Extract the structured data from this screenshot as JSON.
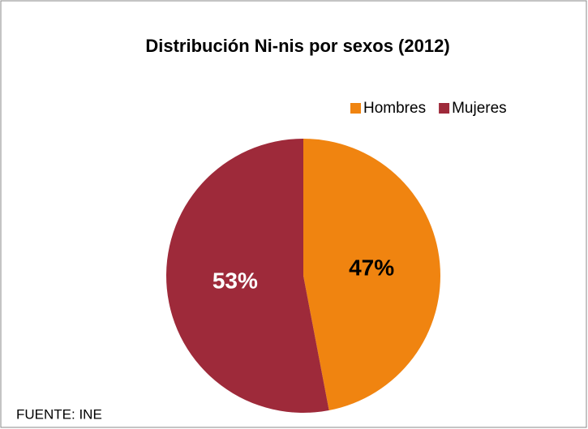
{
  "chart_data": {
    "type": "pie",
    "title": "Distribución Ni-nis por sexos (2012)",
    "categories": [
      "Hombres",
      "Mujeres"
    ],
    "values": [
      47,
      53
    ],
    "value_labels": [
      "47%",
      "53%"
    ],
    "colors": [
      "#f08410",
      "#9e2a3a"
    ],
    "label_colors": [
      "#000000",
      "#ffffff"
    ],
    "legend": "top-right",
    "source": "FUENTE: INE"
  }
}
